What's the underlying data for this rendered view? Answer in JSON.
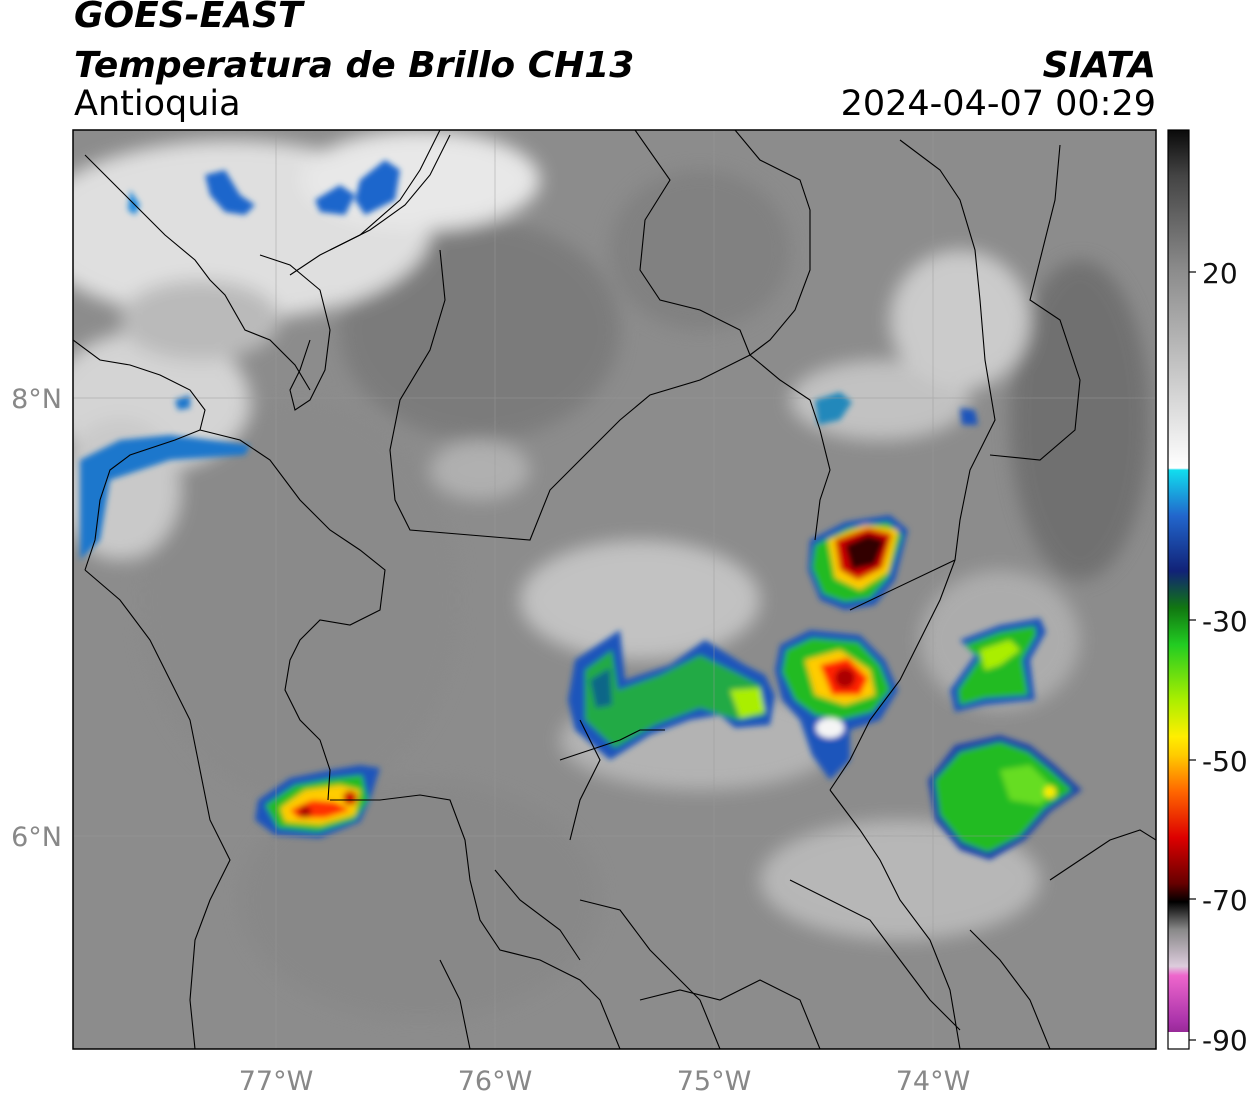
{
  "header": {
    "satellite": "GOES-EAST",
    "product": "Temperatura de Brillo CH13",
    "region": "Antioquia",
    "brand": "SIATA",
    "datetime": "2024-04-07 00:29"
  },
  "map": {
    "lon_labels": [
      "77°W",
      "76°W",
      "75°W",
      "74°W"
    ],
    "lat_labels": [
      "8°N",
      "6°N"
    ]
  },
  "colorbar": {
    "tick_labels": [
      "20",
      "-30",
      "-50",
      "-70",
      "-90"
    ],
    "colors": {
      "warm_dark": "#222222",
      "gray": "#8a8a8a",
      "white": "#f5f5f5",
      "cyan": "#11ccee",
      "blue": "#1133aa",
      "green": "#22bb22",
      "yellow": "#ffee00",
      "orange": "#ff8800",
      "red": "#dd0000",
      "darkred": "#550000",
      "black": "#000000",
      "pink": "#ee66cc",
      "purple": "#992299"
    }
  }
}
